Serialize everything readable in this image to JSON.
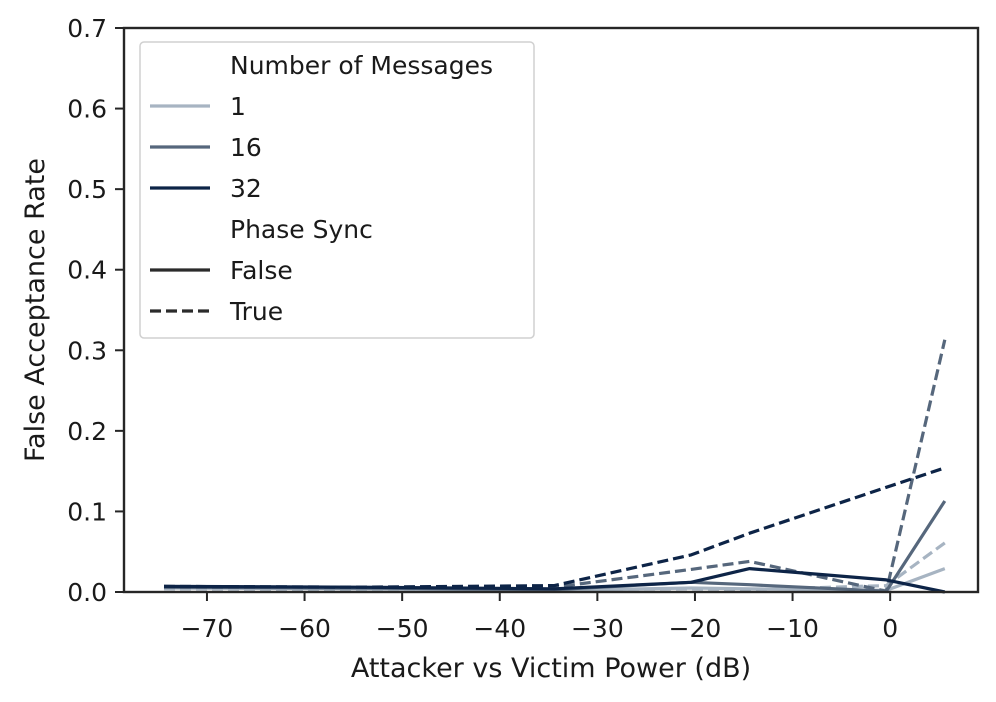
{
  "chart_data": {
    "type": "line",
    "xlabel": "Attacker vs Victim Power (dB)",
    "ylabel": "False Acceptance Rate",
    "xlim": [
      -78.5,
      9
    ],
    "ylim": [
      0,
      0.7
    ],
    "xticks": [
      -70,
      -60,
      -50,
      -40,
      -30,
      -20,
      -10,
      0
    ],
    "xtick_labels": [
      "−70",
      "−60",
      "−50",
      "−40",
      "−30",
      "−20",
      "−10",
      "0"
    ],
    "yticks": [
      0.0,
      0.1,
      0.2,
      0.3,
      0.4,
      0.5,
      0.6,
      0.7
    ],
    "ytick_labels": [
      "0.0",
      "0.1",
      "0.2",
      "0.3",
      "0.4",
      "0.5",
      "0.6",
      "0.7"
    ],
    "grid": false,
    "legend": {
      "placement": "top-left",
      "messages_title": "Number of Messages",
      "phase_title": "Phase Sync",
      "message_entries": [
        {
          "label": "1",
          "color": "#a7b4c2"
        },
        {
          "label": "16",
          "color": "#56677c"
        },
        {
          "label": "32",
          "color": "#0d2447"
        }
      ],
      "phase_entries": [
        {
          "label": "False",
          "style": "solid",
          "color": "#2b2b2b"
        },
        {
          "label": "True",
          "style": "dashed",
          "color": "#2b2b2b"
        }
      ]
    },
    "x": [
      -74.4,
      -54.4,
      -34.4,
      -20.4,
      -14.4,
      -0.4,
      5.6
    ],
    "series": [
      {
        "messages": "1",
        "phase_sync": "False",
        "color": "#a7b4c2",
        "dashed": false,
        "values": [
          0.005,
          0.004,
          0.002,
          0.005,
          0.004,
          0.002,
          0.029
        ]
      },
      {
        "messages": "1",
        "phase_sync": "True",
        "color": "#a7b4c2",
        "dashed": true,
        "values": [
          0.004,
          0.003,
          0.003,
          0.004,
          0.003,
          0.008,
          0.061
        ]
      },
      {
        "messages": "16",
        "phase_sync": "False",
        "color": "#56677c",
        "dashed": false,
        "values": [
          0.006,
          0.005,
          0.003,
          0.012,
          0.009,
          0.001,
          0.113
        ]
      },
      {
        "messages": "16",
        "phase_sync": "True",
        "color": "#56677c",
        "dashed": true,
        "values": [
          0.006,
          0.006,
          0.006,
          0.028,
          0.038,
          0.001,
          0.313
        ]
      },
      {
        "messages": "32",
        "phase_sync": "False",
        "color": "#0d2447",
        "dashed": false,
        "values": [
          0.007,
          0.006,
          0.004,
          0.012,
          0.029,
          0.015,
          0.0
        ]
      },
      {
        "messages": "32",
        "phase_sync": "True",
        "color": "#0d2447",
        "dashed": true,
        "values": [
          0.007,
          0.006,
          0.008,
          0.046,
          0.073,
          0.13,
          0.154
        ]
      }
    ]
  }
}
